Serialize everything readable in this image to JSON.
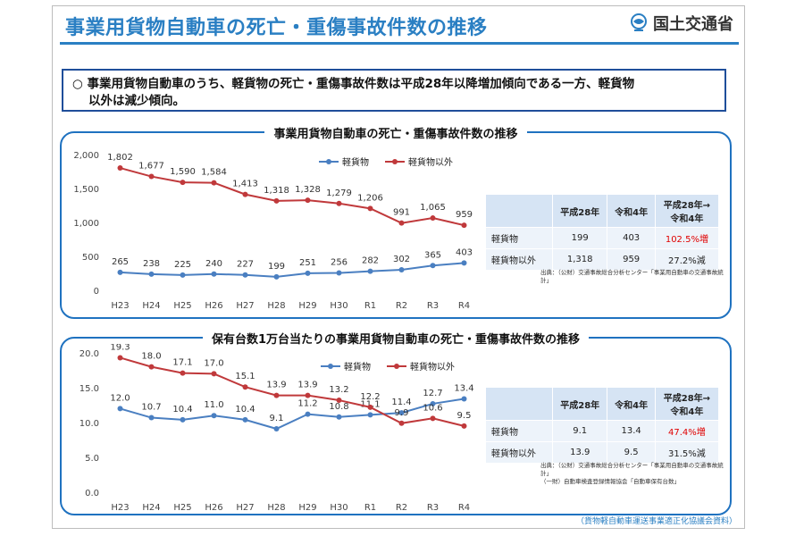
{
  "header": {
    "title": "事業用貨物自動車の死亡・重傷事故件数の推移",
    "org": "国土交通省"
  },
  "summary": {
    "text_line1": "○  事業用貨物自動車のうち、軽貨物の死亡・重傷事故件数は平成28年以降増加傾向である一方、軽貨物",
    "text_line2": "以外は減少傾向。"
  },
  "colors": {
    "accent": "#2a7fc3",
    "series_light": "#4a7fc1",
    "series_other": "#c0393b",
    "increase": "#e00000"
  },
  "chart_data": [
    {
      "type": "line",
      "title": "事業用貨物自動車の死亡・重傷事故件数の推移",
      "x": [
        "H23",
        "H24",
        "H25",
        "H26",
        "H27",
        "H28",
        "H29",
        "H30",
        "R1",
        "R2",
        "R3",
        "R4"
      ],
      "series": [
        {
          "name": "軽貨物",
          "values": [
            265,
            238,
            225,
            240,
            227,
            199,
            251,
            256,
            282,
            302,
            365,
            403
          ]
        },
        {
          "name": "軽貨物以外",
          "values": [
            1802,
            1677,
            1590,
            1584,
            1413,
            1318,
            1328,
            1279,
            1206,
            991,
            1065,
            959
          ]
        }
      ],
      "yticks": [
        "0",
        "500",
        "1,000",
        "1,500",
        "2,000"
      ],
      "ylim": [
        0,
        2000
      ],
      "data_labels_light": [
        "265",
        "238",
        "225",
        "240",
        "227",
        "199",
        "251",
        "256",
        "282",
        "302",
        "365",
        "403"
      ],
      "data_labels_other": [
        "1,802",
        "1,677",
        "1,590",
        "1,584",
        "1,413",
        "1,318",
        "1,328",
        "1,279",
        "1,206",
        "991",
        "1,065",
        "959"
      ],
      "legend": "top-center",
      "grid": false
    },
    {
      "type": "line",
      "title": "保有台数1万台当たりの事業用貨物自動車の死亡・重傷事故件数の推移",
      "x": [
        "H23",
        "H24",
        "H25",
        "H26",
        "H27",
        "H28",
        "H29",
        "H30",
        "R1",
        "R2",
        "R3",
        "R4"
      ],
      "series": [
        {
          "name": "軽貨物",
          "values": [
            12.0,
            10.7,
            10.4,
            11.0,
            10.4,
            9.1,
            11.2,
            10.8,
            11.1,
            11.4,
            12.7,
            13.4
          ]
        },
        {
          "name": "軽貨物以外",
          "values": [
            19.3,
            18.0,
            17.1,
            17.0,
            15.1,
            13.9,
            13.9,
            13.2,
            12.2,
            9.9,
            10.6,
            9.5
          ]
        }
      ],
      "yticks": [
        "0.0",
        "5.0",
        "10.0",
        "15.0",
        "20.0"
      ],
      "ylim": [
        0,
        20
      ],
      "data_labels_light": [
        "12.0",
        "10.7",
        "10.4",
        "11.0",
        "10.4",
        "9.1",
        "11.2",
        "10.8",
        "11.1",
        "11.4",
        "12.7",
        "13.4"
      ],
      "data_labels_other": [
        "19.3",
        "18.0",
        "17.1",
        "17.0",
        "15.1",
        "13.9",
        "13.9",
        "13.2",
        "12.2",
        "9.9",
        "10.6",
        "9.5"
      ],
      "legend": "top-center",
      "grid": false
    }
  ],
  "table1": {
    "headers": [
      "",
      "平成28年",
      "令和4年",
      "平成28年→\n令和4年"
    ],
    "rows": [
      [
        "軽貨物",
        "199",
        "403",
        "102.5%増"
      ],
      [
        "軽貨物以外",
        "1,318",
        "959",
        "27.2%減"
      ]
    ],
    "source": "出典：（公財）交通事故総合分析センター「事業用自動車の交通事故統計」"
  },
  "table2": {
    "headers": [
      "",
      "平成28年",
      "令和4年",
      "平成28年→\n令和4年"
    ],
    "rows": [
      [
        "軽貨物",
        "9.1",
        "13.4",
        "47.4%増"
      ],
      [
        "軽貨物以外",
        "13.9",
        "9.5",
        "31.5%減"
      ]
    ],
    "source_line1": "出典：（公財）交通事故総合分析センター「事業用自動車の交通事故統計」",
    "source_line2": "（一財）自動車検査登録情報協会「自動車保有台数」"
  },
  "footnote": "（貨物軽自動車運送事業適正化協議会資料）"
}
